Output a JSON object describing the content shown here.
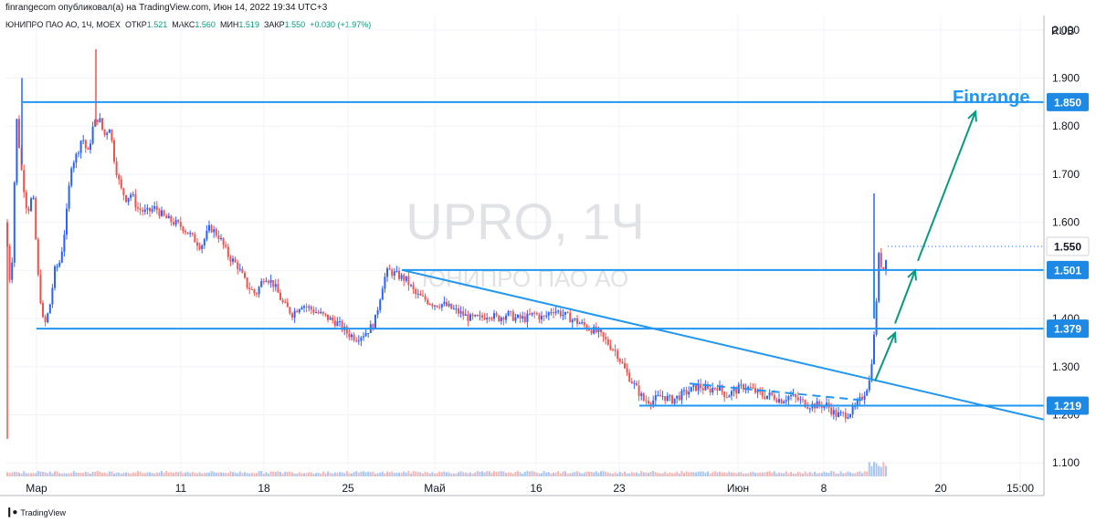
{
  "header": {
    "attribution": "finrangecom опубликовал(а) на TradingView.com, Июн 14, 2022 19:34 UTC+3"
  },
  "ohlc": {
    "symbol": "ЮНИПРО ПАО АО, 1Ч, MOEX",
    "open_label": "ОТКР",
    "open": "1.521",
    "high_label": "МАКС",
    "high": "1.560",
    "low_label": "МИН",
    "low": "1.519",
    "close_label": "ЗАКР",
    "close": "1.550",
    "change": "+0.030 (+1.97%)"
  },
  "watermark": {
    "ticker": "UPRO, 1Ч",
    "name": "ЮНИПРО ПАО АО"
  },
  "annotation": {
    "brand": "Finrange"
  },
  "footer": {
    "logo_text": "TradingView"
  },
  "colors": {
    "up": "#2962ff",
    "down": "#ef5350",
    "line": "#2196f3",
    "arrow": "#089981",
    "badge": "#1e88e5"
  },
  "chart_data": {
    "type": "candlestick",
    "currency": "RUB",
    "y_ticks": [
      "1.100",
      "1.200",
      "1.300",
      "1.400",
      "1.500",
      "1.600",
      "1.700",
      "1.800",
      "1.900",
      "2.000"
    ],
    "ylim": [
      1.07,
      2.03
    ],
    "x_ticks": [
      "Мар",
      "11",
      "18",
      "25",
      "Май",
      "16",
      "23",
      "Июн",
      "8",
      "20",
      "15:00"
    ],
    "horizontal_levels": [
      {
        "value": 1.85,
        "label": "1.850"
      },
      {
        "value": 1.501,
        "label": "1.501"
      },
      {
        "value": 1.379,
        "label": "1.379"
      },
      {
        "value": 1.219,
        "label": "1.219"
      }
    ],
    "last_price": {
      "value": 1.55,
      "label": "1.550"
    },
    "price_path": [
      [
        0,
        1.16
      ],
      [
        6,
        1.6
      ],
      [
        12,
        1.45
      ],
      [
        18,
        1.82
      ],
      [
        24,
        1.7
      ],
      [
        30,
        1.62
      ],
      [
        36,
        1.66
      ],
      [
        42,
        1.48
      ],
      [
        48,
        1.38
      ],
      [
        54,
        1.42
      ],
      [
        60,
        1.5
      ],
      [
        66,
        1.52
      ],
      [
        72,
        1.6
      ],
      [
        78,
        1.72
      ],
      [
        84,
        1.74
      ],
      [
        90,
        1.78
      ],
      [
        96,
        1.74
      ],
      [
        102,
        1.8
      ],
      [
        108,
        1.82
      ],
      [
        114,
        1.78
      ],
      [
        120,
        1.8
      ],
      [
        126,
        1.72
      ],
      [
        132,
        1.67
      ],
      [
        138,
        1.65
      ],
      [
        144,
        1.66
      ],
      [
        150,
        1.63
      ],
      [
        160,
        1.62
      ],
      [
        170,
        1.63
      ],
      [
        180,
        1.61
      ],
      [
        190,
        1.6
      ],
      [
        200,
        1.59
      ],
      [
        210,
        1.57
      ],
      [
        220,
        1.55
      ],
      [
        230,
        1.59
      ],
      [
        240,
        1.57
      ],
      [
        250,
        1.53
      ],
      [
        260,
        1.51
      ],
      [
        270,
        1.47
      ],
      [
        280,
        1.45
      ],
      [
        290,
        1.49
      ],
      [
        300,
        1.47
      ],
      [
        310,
        1.43
      ],
      [
        320,
        1.41
      ],
      [
        330,
        1.43
      ],
      [
        340,
        1.42
      ],
      [
        350,
        1.41
      ],
      [
        360,
        1.4
      ],
      [
        370,
        1.39
      ],
      [
        380,
        1.37
      ],
      [
        390,
        1.36
      ],
      [
        400,
        1.37
      ],
      [
        410,
        1.39
      ],
      [
        420,
        1.48
      ],
      [
        425,
        1.5
      ],
      [
        435,
        1.49
      ],
      [
        445,
        1.48
      ],
      [
        455,
        1.45
      ],
      [
        465,
        1.44
      ],
      [
        475,
        1.43
      ],
      [
        485,
        1.43
      ],
      [
        495,
        1.42
      ],
      [
        505,
        1.41
      ],
      [
        515,
        1.4
      ],
      [
        525,
        1.4
      ],
      [
        535,
        1.41
      ],
      [
        545,
        1.4
      ],
      [
        555,
        1.41
      ],
      [
        565,
        1.4
      ],
      [
        575,
        1.4
      ],
      [
        585,
        1.41
      ],
      [
        595,
        1.4
      ],
      [
        605,
        1.42
      ],
      [
        615,
        1.41
      ],
      [
        625,
        1.4
      ],
      [
        635,
        1.39
      ],
      [
        645,
        1.38
      ],
      [
        655,
        1.37
      ],
      [
        665,
        1.35
      ],
      [
        675,
        1.33
      ],
      [
        685,
        1.29
      ],
      [
        695,
        1.26
      ],
      [
        705,
        1.23
      ],
      [
        715,
        1.23
      ],
      [
        725,
        1.24
      ],
      [
        735,
        1.23
      ],
      [
        745,
        1.24
      ],
      [
        755,
        1.25
      ],
      [
        765,
        1.26
      ],
      [
        775,
        1.25
      ],
      [
        785,
        1.26
      ],
      [
        795,
        1.24
      ],
      [
        805,
        1.25
      ],
      [
        815,
        1.26
      ],
      [
        825,
        1.25
      ],
      [
        835,
        1.24
      ],
      [
        845,
        1.24
      ],
      [
        855,
        1.23
      ],
      [
        865,
        1.24
      ],
      [
        875,
        1.23
      ],
      [
        885,
        1.22
      ],
      [
        895,
        1.22
      ],
      [
        905,
        1.22
      ],
      [
        915,
        1.2
      ],
      [
        925,
        1.2
      ],
      [
        935,
        1.21
      ],
      [
        945,
        1.24
      ],
      [
        952,
        1.27
      ],
      [
        958,
        1.38
      ],
      [
        962,
        1.53
      ],
      [
        967,
        1.5
      ],
      [
        972,
        1.55
      ]
    ]
  }
}
